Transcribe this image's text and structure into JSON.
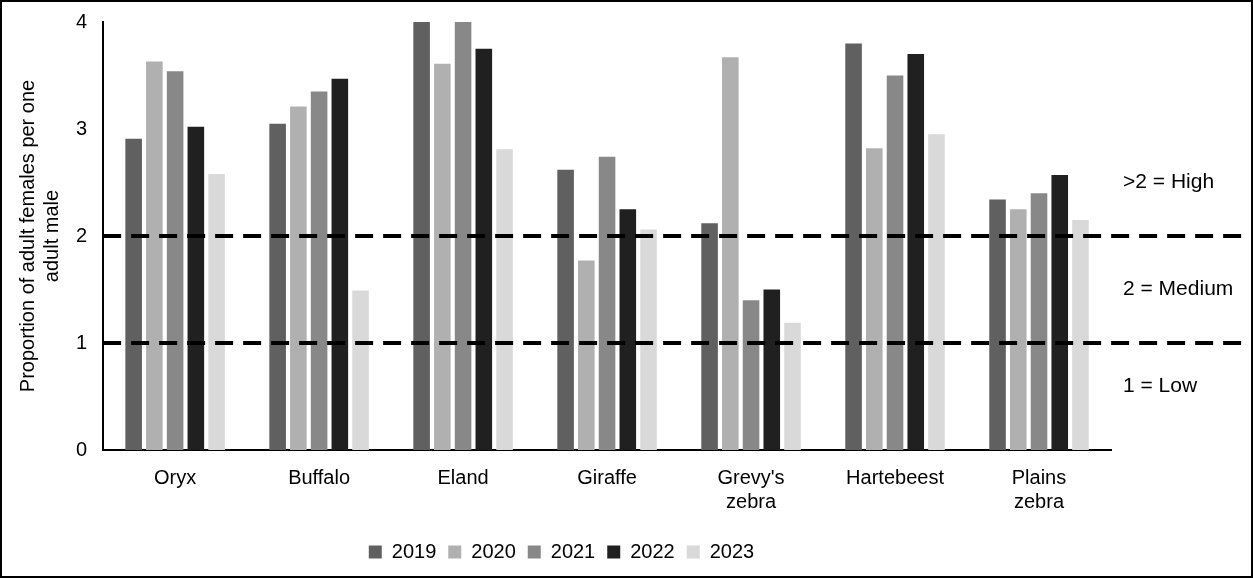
{
  "chart_data": {
    "type": "bar",
    "ylabel": "Proportion of adult females per one adult male",
    "categories": [
      "Oryx",
      "Buffalo",
      "Eland",
      "Giraffe",
      "Grevy's zebra",
      "Hartebeest",
      "Plains zebra"
    ],
    "series": [
      {
        "name": "2019",
        "color": "#606060",
        "values": [
          2.91,
          3.05,
          4.0,
          2.62,
          2.12,
          3.8,
          2.34
        ]
      },
      {
        "name": "2020",
        "color": "#b0b0b0",
        "values": [
          3.63,
          3.21,
          3.61,
          1.77,
          3.67,
          2.82,
          2.25
        ]
      },
      {
        "name": "2021",
        "color": "#888888",
        "values": [
          3.54,
          3.35,
          4.0,
          2.74,
          1.4,
          3.5,
          2.4
        ]
      },
      {
        "name": "2022",
        "color": "#202020",
        "values": [
          3.02,
          3.47,
          3.75,
          2.25,
          1.5,
          3.7,
          2.57
        ]
      },
      {
        "name": "2023",
        "color": "#d9d9d9",
        "values": [
          2.58,
          1.49,
          2.81,
          2.06,
          1.19,
          2.95,
          2.15
        ]
      }
    ],
    "ylim": [
      0,
      4
    ],
    "yticks": [
      0,
      1,
      2,
      3,
      4
    ],
    "grid": false,
    "legend": "bottom",
    "ref_lines": [
      {
        "axis": "y",
        "value": 2,
        "color": "#000000",
        "line_style": "dashed"
      },
      {
        "axis": "y",
        "value": 1,
        "color": "#000000",
        "line_style": "dashed"
      }
    ],
    "annotations": [
      ">2 = High",
      "2 = Medium",
      "1 = Low"
    ]
  }
}
